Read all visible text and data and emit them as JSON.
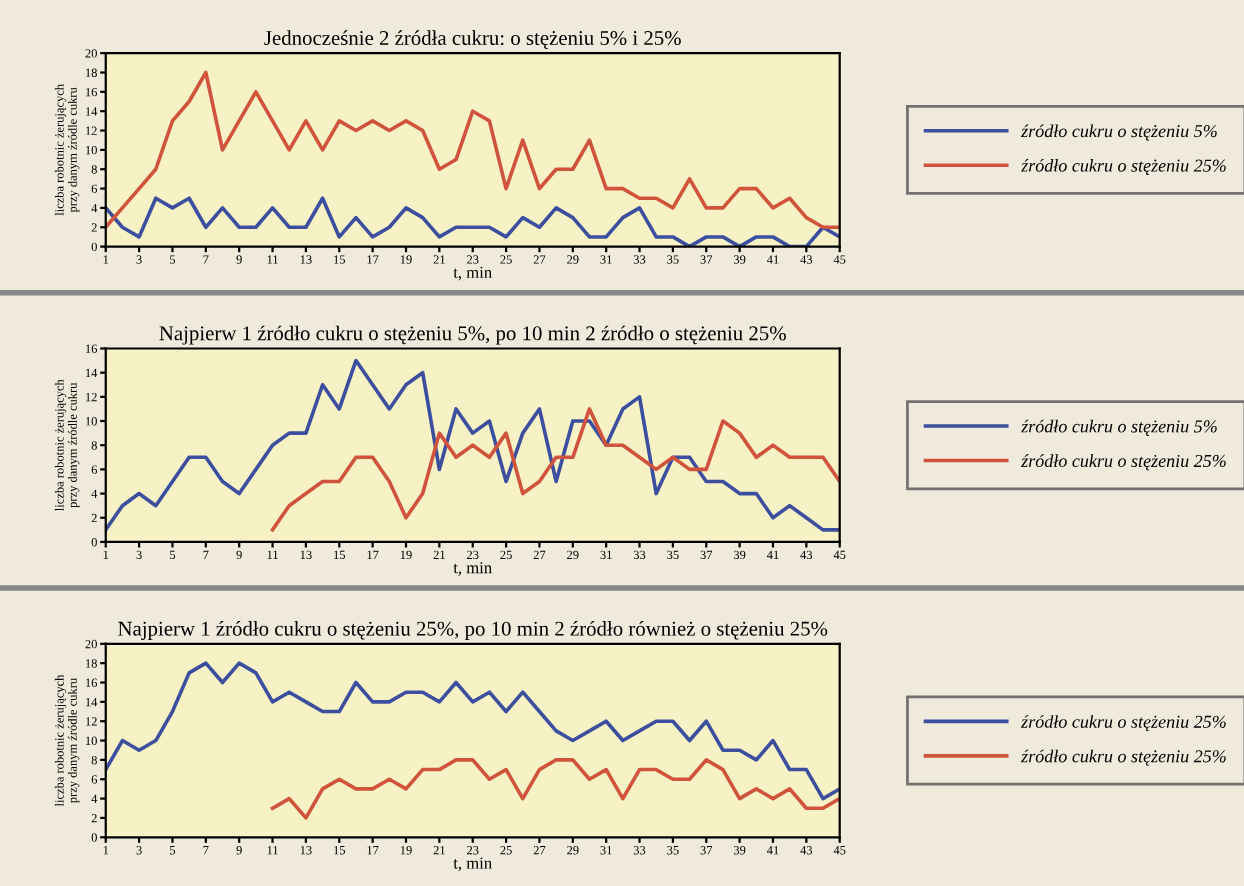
{
  "chart_data": [
    {
      "type": "line",
      "title": "Jednocześnie 2 źródła cukru: o stężeniu 5% i 25%",
      "xlabel": "t, min",
      "ylabel": "liczba robotnic żerujących\nprzy danym źródle cukru",
      "x": [
        1,
        2,
        3,
        4,
        5,
        6,
        7,
        8,
        9,
        10,
        11,
        12,
        13,
        14,
        15,
        16,
        17,
        18,
        19,
        20,
        21,
        22,
        23,
        24,
        25,
        26,
        27,
        28,
        29,
        30,
        31,
        32,
        33,
        34,
        35,
        36,
        37,
        38,
        39,
        40,
        41,
        42,
        43,
        44,
        45
      ],
      "series": [
        {
          "name": "źródło cukru o stężeniu 5%",
          "color": "#3b4f9e",
          "values": [
            4,
            2,
            1,
            5,
            4,
            5,
            2,
            4,
            2,
            2,
            4,
            2,
            2,
            5,
            1,
            3,
            1,
            2,
            4,
            3,
            1,
            2,
            2,
            2,
            1,
            3,
            2,
            4,
            3,
            1,
            1,
            3,
            4,
            1,
            1,
            0,
            1,
            1,
            0,
            1,
            1,
            0,
            0,
            2,
            1
          ]
        },
        {
          "name": "źródło cukru o stężeniu 25%",
          "color": "#d0533c",
          "values": [
            2,
            4,
            6,
            8,
            13,
            15,
            18,
            10,
            13,
            16,
            13,
            10,
            13,
            10,
            13,
            12,
            13,
            12,
            13,
            12,
            8,
            9,
            14,
            13,
            6,
            11,
            6,
            8,
            8,
            11,
            6,
            6,
            5,
            5,
            4,
            7,
            4,
            4,
            6,
            6,
            4,
            5,
            3,
            2,
            2
          ]
        }
      ],
      "xlim": [
        1,
        45
      ],
      "xticks": [
        1,
        3,
        5,
        7,
        9,
        11,
        13,
        15,
        17,
        19,
        21,
        23,
        25,
        27,
        29,
        31,
        33,
        35,
        37,
        39,
        41,
        43,
        45
      ],
      "ylim": [
        0,
        20
      ],
      "yticks": [
        0,
        2,
        4,
        6,
        8,
        10,
        12,
        14,
        16,
        18,
        20
      ],
      "legend": "right",
      "grid": false
    },
    {
      "type": "line",
      "title": "Najpierw 1 źródło cukru o stężeniu 5%, po 10 min 2 źródło o stężeniu 25%",
      "xlabel": "t, min",
      "ylabel": "liczba robotnic żerujących\nprzy danym źródle cukru",
      "x": [
        1,
        2,
        3,
        4,
        5,
        6,
        7,
        8,
        9,
        10,
        11,
        12,
        13,
        14,
        15,
        16,
        17,
        18,
        19,
        20,
        21,
        22,
        23,
        24,
        25,
        26,
        27,
        28,
        29,
        30,
        31,
        32,
        33,
        34,
        35,
        36,
        37,
        38,
        39,
        40,
        41,
        42,
        43,
        44,
        45
      ],
      "series": [
        {
          "name": "źródło cukru o stężeniu 5%",
          "color": "#3b4f9e",
          "values": [
            1,
            3,
            4,
            3,
            5,
            7,
            7,
            5,
            4,
            6,
            8,
            9,
            9,
            13,
            11,
            15,
            13,
            11,
            13,
            14,
            6,
            11,
            9,
            10,
            5,
            9,
            11,
            5,
            10,
            10,
            8,
            11,
            12,
            4,
            7,
            7,
            5,
            5,
            4,
            4,
            2,
            3,
            2,
            1,
            1
          ]
        },
        {
          "name": "źródło cukru o stężeniu 25%",
          "color": "#d0533c",
          "values": [
            null,
            null,
            null,
            null,
            null,
            null,
            null,
            null,
            null,
            null,
            1,
            3,
            4,
            5,
            5,
            7,
            7,
            5,
            2,
            4,
            9,
            7,
            8,
            7,
            9,
            4,
            5,
            7,
            7,
            11,
            8,
            8,
            7,
            6,
            7,
            6,
            6,
            10,
            9,
            7,
            8,
            7,
            7,
            7,
            5
          ]
        }
      ],
      "xlim": [
        1,
        45
      ],
      "xticks": [
        1,
        3,
        5,
        7,
        9,
        11,
        13,
        15,
        17,
        19,
        21,
        23,
        25,
        27,
        29,
        31,
        33,
        35,
        37,
        39,
        41,
        43,
        45
      ],
      "ylim": [
        0,
        16
      ],
      "yticks": [
        0,
        2,
        4,
        6,
        8,
        10,
        12,
        14,
        16
      ],
      "legend": "right",
      "grid": false
    },
    {
      "type": "line",
      "title": "Najpierw 1 źródło cukru o stężeniu 25%, po 10 min 2 źródło również o stężeniu 25%",
      "xlabel": "t, min",
      "ylabel": "liczba robotnic żerujących\nprzy danym źródle cukru",
      "x": [
        1,
        2,
        3,
        4,
        5,
        6,
        7,
        8,
        9,
        10,
        11,
        12,
        13,
        14,
        15,
        16,
        17,
        18,
        19,
        20,
        21,
        22,
        23,
        24,
        25,
        26,
        27,
        28,
        29,
        30,
        31,
        32,
        33,
        34,
        35,
        36,
        37,
        38,
        39,
        40,
        41,
        42,
        43,
        44,
        45
      ],
      "series": [
        {
          "name": "źródło cukru o stężeniu 25%",
          "color": "#3b4f9e",
          "values": [
            7,
            10,
            9,
            10,
            13,
            17,
            18,
            16,
            18,
            17,
            14,
            15,
            14,
            13,
            13,
            16,
            14,
            14,
            15,
            15,
            14,
            16,
            14,
            15,
            13,
            15,
            13,
            11,
            10,
            11,
            12,
            10,
            11,
            12,
            12,
            10,
            12,
            9,
            9,
            8,
            10,
            7,
            7,
            4,
            5
          ]
        },
        {
          "name": "źródło cukru o stężeniu 25%",
          "color": "#d0533c",
          "values": [
            null,
            null,
            null,
            null,
            null,
            null,
            null,
            null,
            null,
            null,
            3,
            4,
            2,
            5,
            6,
            5,
            5,
            6,
            5,
            7,
            7,
            8,
            8,
            6,
            7,
            4,
            7,
            8,
            8,
            6,
            7,
            4,
            7,
            7,
            6,
            6,
            8,
            7,
            4,
            5,
            4,
            5,
            3,
            3,
            4
          ]
        }
      ],
      "xlim": [
        1,
        45
      ],
      "xticks": [
        1,
        3,
        5,
        7,
        9,
        11,
        13,
        15,
        17,
        19,
        21,
        23,
        25,
        27,
        29,
        31,
        33,
        35,
        37,
        39,
        41,
        43,
        45
      ],
      "ylim": [
        0,
        20
      ],
      "yticks": [
        0,
        2,
        4,
        6,
        8,
        10,
        12,
        14,
        16,
        18,
        20
      ],
      "legend": "right",
      "grid": false
    }
  ]
}
